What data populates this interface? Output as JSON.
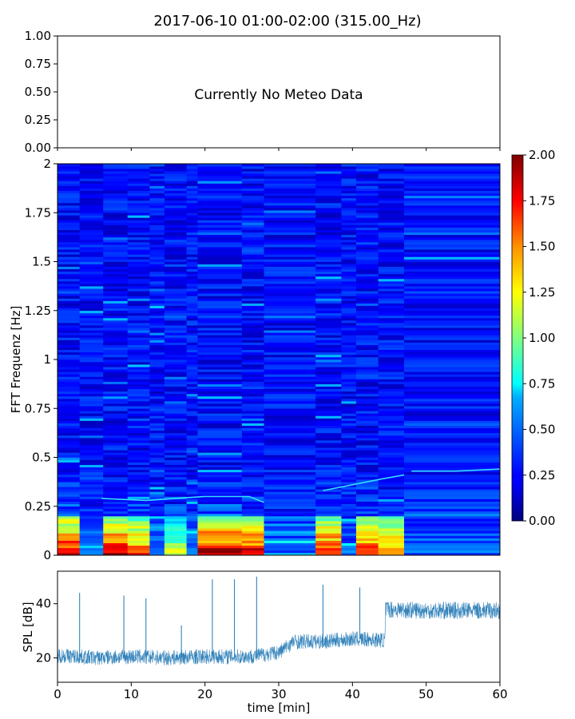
{
  "figure": {
    "title": "2017-06-10 01:00-02:00 (315.00_Hz)"
  },
  "chart_data": [
    {
      "type": "text_panel",
      "message": "Currently No Meteo Data",
      "ylim": [
        0,
        1
      ],
      "yticks": [
        "0.00",
        "0.25",
        "0.50",
        "0.75",
        "1.00"
      ]
    },
    {
      "type": "heatmap",
      "ylabel": "FFT Frequenz [Hz]",
      "xlim": [
        0,
        60
      ],
      "ylim": [
        0,
        2
      ],
      "yticks": [
        "0",
        "0.25",
        "0.5",
        "0.75",
        "1",
        "1.25",
        "1.5",
        "1.75",
        "2"
      ],
      "colormap": "jet",
      "colorbar": {
        "range": [
          0,
          2
        ],
        "ticks": [
          "0.00",
          "0.25",
          "0.50",
          "0.75",
          "1.00",
          "1.25",
          "1.50",
          "1.75",
          "2.00"
        ]
      },
      "features": [
        {
          "x_start": 0,
          "x_end": 3,
          "low_freq_energy": 1.9
        },
        {
          "x_start": 3,
          "x_end": 6.2,
          "low_freq_energy": 0.5
        },
        {
          "x_start": 6.2,
          "x_end": 9.5,
          "low_freq_energy": 1.9
        },
        {
          "x_start": 9.5,
          "x_end": 12.5,
          "low_freq_energy": 1.7
        },
        {
          "x_start": 12.5,
          "x_end": 14.5,
          "low_freq_energy": 0.4
        },
        {
          "x_start": 14.5,
          "x_end": 17.5,
          "low_freq_energy": 1.2
        },
        {
          "x_start": 17.5,
          "x_end": 19,
          "low_freq_energy": 0.5
        },
        {
          "x_start": 19,
          "x_end": 25,
          "low_freq_energy": 1.95
        },
        {
          "x_start": 25,
          "x_end": 28,
          "low_freq_energy": 1.9
        },
        {
          "x_start": 28,
          "x_end": 35,
          "low_freq_energy": 0.35
        },
        {
          "x_start": 35,
          "x_end": 38.5,
          "low_freq_energy": 1.8
        },
        {
          "x_start": 38.5,
          "x_end": 40.5,
          "low_freq_energy": 0.4
        },
        {
          "x_start": 40.5,
          "x_end": 43.5,
          "low_freq_energy": 1.8
        },
        {
          "x_start": 43.5,
          "x_end": 47,
          "low_freq_energy": 1.6
        },
        {
          "x_start": 47,
          "x_end": 60,
          "low_freq_energy": 0.35
        }
      ],
      "tonal_lines": [
        {
          "x": [
            6,
            12,
            20,
            26,
            28
          ],
          "y": [
            0.29,
            0.28,
            0.3,
            0.3,
            0.27
          ]
        },
        {
          "x": [
            36,
            40,
            44,
            47
          ],
          "y": [
            0.33,
            0.36,
            0.39,
            0.41
          ]
        },
        {
          "x": [
            48,
            54,
            60
          ],
          "y": [
            0.43,
            0.43,
            0.44
          ]
        }
      ]
    },
    {
      "type": "line",
      "xlabel": "time [min]",
      "ylabel": "SPL [dB]",
      "xlim": [
        0,
        60
      ],
      "ylim": [
        11,
        52
      ],
      "xticks": [
        "0",
        "10",
        "20",
        "30",
        "40",
        "50",
        "60"
      ],
      "yticks": [
        "20",
        "40"
      ],
      "color": "#1f77b4",
      "baseline": [
        {
          "x": 0,
          "y": 21
        },
        {
          "x": 5,
          "y": 20
        },
        {
          "x": 10,
          "y": 20.5
        },
        {
          "x": 15,
          "y": 20
        },
        {
          "x": 20,
          "y": 20.5
        },
        {
          "x": 26,
          "y": 20.5
        },
        {
          "x": 30,
          "y": 22
        },
        {
          "x": 32,
          "y": 26
        },
        {
          "x": 36,
          "y": 26
        },
        {
          "x": 40,
          "y": 27
        },
        {
          "x": 44.4,
          "y": 26.5
        },
        {
          "x": 44.5,
          "y": 38
        },
        {
          "x": 50,
          "y": 37.5
        },
        {
          "x": 55,
          "y": 37.5
        },
        {
          "x": 60,
          "y": 37.5
        }
      ],
      "spikes": [
        {
          "x": 3,
          "y": 44
        },
        {
          "x": 9,
          "y": 43
        },
        {
          "x": 12,
          "y": 42
        },
        {
          "x": 16.8,
          "y": 32
        },
        {
          "x": 21,
          "y": 49
        },
        {
          "x": 24,
          "y": 49
        },
        {
          "x": 27,
          "y": 50
        },
        {
          "x": 36,
          "y": 47
        },
        {
          "x": 41,
          "y": 46
        }
      ]
    }
  ]
}
